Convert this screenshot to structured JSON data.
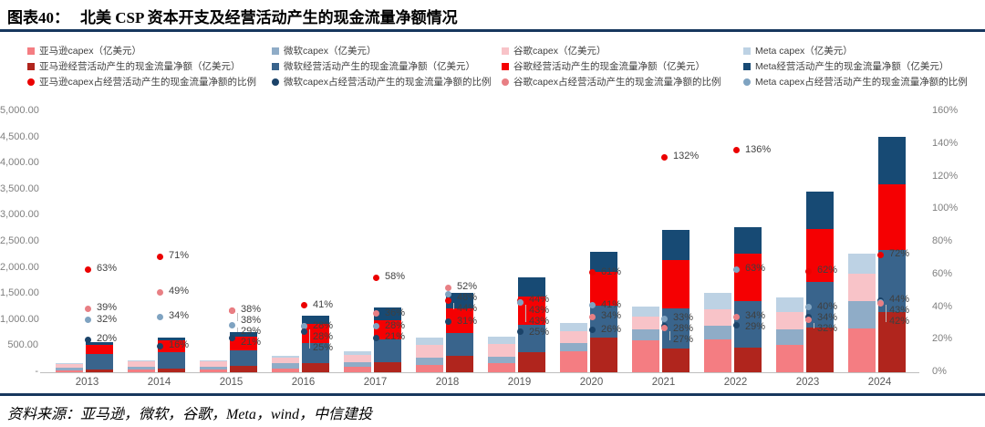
{
  "header": {
    "chart_no": "图表40：",
    "title": "北美 CSP 资本开支及经营活动产生的现金流量净额情况"
  },
  "source": {
    "label": "资料来源：亚马逊，微软，谷歌，Meta，wind，中信建投"
  },
  "colors": {
    "rule": "#17375E",
    "axis_text": "#7F7F7F",
    "label_text": "#3F3F3F",
    "capex_amazon": "#F47D82",
    "capex_microsoft": "#8FACC7",
    "capex_google": "#F8C3C8",
    "capex_meta": "#BDD2E4",
    "ocf_amazon": "#B0251D",
    "ocf_microsoft": "#39648C",
    "ocf_google": "#F50002",
    "ocf_meta": "#174A74",
    "ratio_amazon": "#EB0000",
    "ratio_microsoft": "#1B4369",
    "ratio_google": "#E87F84",
    "ratio_meta": "#7FA3C1"
  },
  "chart_data": {
    "type": "bar",
    "overlay_type": "scatter",
    "note": "Two stacked bars per year: left = capex stack, right = operating cash flow stack; dots = capex/OCF ratio on right axis",
    "categories": [
      "2013",
      "2014",
      "2015",
      "2016",
      "2017",
      "2018",
      "2019",
      "2020",
      "2021",
      "2022",
      "2023",
      "2024"
    ],
    "left_axis": {
      "unit": "亿美元",
      "min": 0,
      "max": 5000,
      "ticks": [
        "5,000.00",
        "4,500.00",
        "4,000.00",
        "3,500.00",
        "3,000.00",
        "2,500.00",
        "2,000.00",
        "1,500.00",
        "1,000.00",
        "500.00",
        "-"
      ]
    },
    "right_axis": {
      "unit": "%",
      "min_pct": 0,
      "max_pct": 160,
      "ticks": [
        "160%",
        "140%",
        "120%",
        "100%",
        "80%",
        "60%",
        "40%",
        "20%",
        "0%"
      ]
    },
    "capex_series": [
      {
        "name": "亚马逊capex（亿美元）",
        "color_key": "capex_amazon",
        "values": [
          35,
          48,
          46,
          71,
          107,
          135,
          169,
          403,
          611,
          636,
          526,
          834
        ]
      },
      {
        "name": "微软capex（亿美元）",
        "color_key": "capex_microsoft",
        "values": [
          58,
          52,
          62,
          99,
          92,
          136,
          131,
          158,
          215,
          258,
          298,
          522
        ]
      },
      {
        "name": "谷歌capex（亿美元）",
        "color_key": "capex_google",
        "values": [
          73,
          109,
          100,
          101,
          133,
          250,
          234,
          221,
          248,
          311,
          325,
          526
        ]
      },
      {
        "name": "Meta capex（亿美元）",
        "color_key": "capex_meta",
        "values": [
          13,
          18,
          25,
          45,
          68,
          141,
          156,
          159,
          190,
          318,
          284,
          393
        ]
      }
    ],
    "ocf_series": [
      {
        "name": "亚马逊经营活动产生的现金流量净额（亿美元）",
        "color_key": "ocf_amazon",
        "values": [
          55,
          68,
          120,
          172,
          184,
          307,
          385,
          661,
          463,
          468,
          849,
          1159
        ]
      },
      {
        "name": "微软经营活动产生的现金流量净额（亿美元）",
        "color_key": "ocf_microsoft",
        "values": [
          288,
          324,
          294,
          395,
          437,
          439,
          522,
          607,
          768,
          890,
          876,
          1186
        ]
      },
      {
        "name": "谷歌经营活动产生的现金流量净额（亿美元）",
        "color_key": "ocf_google",
        "values": [
          187,
          222,
          263,
          360,
          370,
          480,
          545,
          651,
          917,
          915,
          1017,
          1253
        ]
      },
      {
        "name": "Meta经营活动产生的现金流量净额（亿美元）",
        "color_key": "ocf_meta",
        "values": [
          42,
          54,
          86,
          161,
          242,
          293,
          363,
          387,
          577,
          505,
          711,
          913
        ]
      }
    ],
    "ratio_series": [
      {
        "name": "亚马逊capex占经营活动产生的现金流量净额的比例",
        "color_key": "ratio_amazon",
        "values_pct": [
          63,
          71,
          38,
          41,
          58,
          44,
          44,
          61,
          132,
          136,
          62,
          72
        ]
      },
      {
        "name": "微软capex占经营活动产生的现金流量净额的比例",
        "color_key": "ratio_microsoft",
        "values_pct": [
          20,
          16,
          21,
          25,
          21,
          31,
          25,
          26,
          28,
          29,
          34,
          44
        ]
      },
      {
        "name": "谷歌capex占经营活动产生的现金流量净额的比例",
        "color_key": "ratio_google",
        "values_pct": [
          39,
          49,
          38,
          28,
          36,
          52,
          43,
          34,
          27,
          34,
          32,
          42
        ]
      },
      {
        "name": "Meta capex占经营活动产生的现金流量净额的比例",
        "color_key": "ratio_meta",
        "values_pct": [
          32,
          34,
          29,
          28,
          28,
          48,
          43,
          41,
          33,
          63,
          40,
          43
        ]
      }
    ]
  }
}
